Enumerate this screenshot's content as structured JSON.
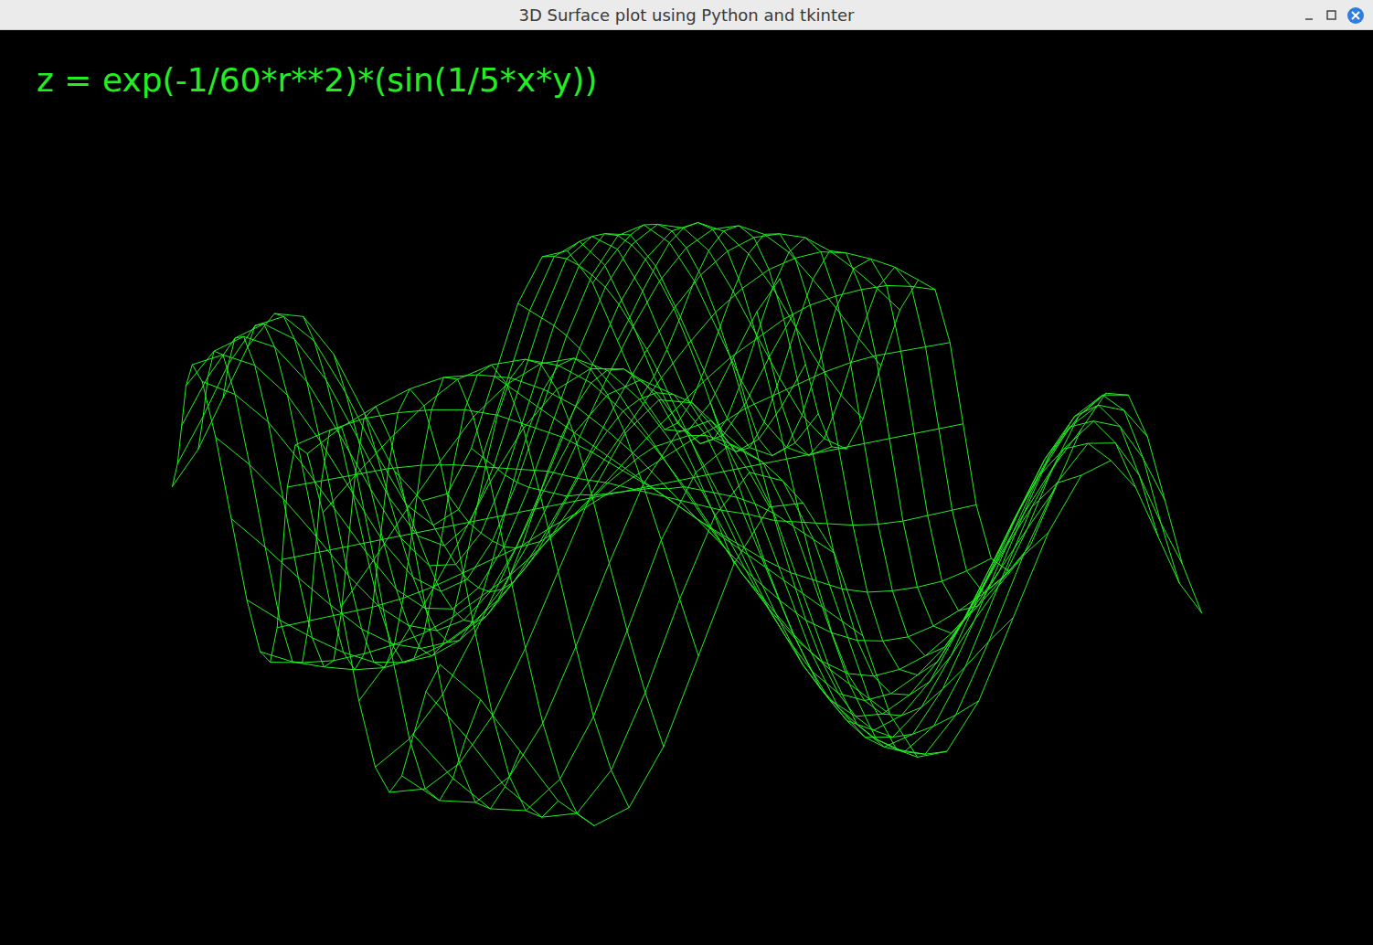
{
  "window": {
    "title": "3D Surface plot using Python and tkinter"
  },
  "chart_data": {
    "type": "surface",
    "title": "z = exp(-1/60*r**2)*(sin(1/5*x*y))",
    "color": "#22ee22",
    "tick_labels": false,
    "x": [
      -6,
      -5.5,
      -5,
      -4.5,
      -4,
      -3.5,
      -3,
      -2.5,
      -2,
      -1.5,
      -1,
      -0.5,
      0,
      0.5,
      1,
      1.5,
      2,
      2.5,
      3,
      3.5,
      4,
      4.5,
      5,
      5.5,
      6
    ],
    "y": [
      -6,
      -5.5,
      -5,
      -4.5,
      -4,
      -3.5,
      -3,
      -2.5,
      -2,
      -1.5,
      -1,
      -0.5,
      0,
      0.5,
      1,
      1.5,
      2,
      2.5,
      3,
      3.5,
      4,
      4.5,
      5,
      5.5,
      6
    ],
    "z": [
      [
        0.24,
        0.1,
        -0.1,
        -0.3,
        -0.42,
        -0.39,
        -0.21,
        0.07,
        0.35,
        0.51,
        0.5,
        0.31,
        0,
        -0.31,
        -0.5,
        -0.51,
        -0.35,
        -0.07,
        0.21,
        0.39,
        0.42,
        0.3,
        0.1,
        -0.1,
        -0.24
      ],
      [
        0.1,
        -0.08,
        -0.28,
        -0.42,
        -0.44,
        -0.32,
        -0.08,
        0.21,
        0.46,
        0.58,
        0.53,
        0.31,
        0,
        -0.31,
        -0.53,
        -0.58,
        -0.46,
        -0.21,
        0.08,
        0.32,
        0.44,
        0.42,
        0.28,
        0.08,
        -0.1
      ],
      [
        -0.1,
        -0.28,
        -0.42,
        -0.46,
        -0.38,
        -0.19,
        0.08,
        0.36,
        0.56,
        0.63,
        0.55,
        0.31,
        0,
        -0.31,
        -0.55,
        -0.63,
        -0.56,
        -0.36,
        -0.08,
        0.19,
        0.38,
        0.46,
        0.42,
        0.28,
        0.1
      ],
      [
        -0.3,
        -0.42,
        -0.46,
        -0.4,
        -0.24,
        0,
        0.26,
        0.5,
        0.65,
        0.67,
        0.55,
        0.31,
        0,
        -0.31,
        -0.55,
        -0.67,
        -0.65,
        -0.5,
        -0.26,
        0,
        0.24,
        0.4,
        0.46,
        0.42,
        0.3
      ],
      [
        -0.42,
        -0.44,
        -0.38,
        -0.24,
        -0.03,
        0.21,
        0.45,
        0.63,
        0.72,
        0.69,
        0.54,
        0.3,
        0,
        -0.3,
        -0.54,
        -0.69,
        -0.72,
        -0.63,
        -0.45,
        -0.21,
        0.03,
        0.24,
        0.38,
        0.44,
        0.42
      ],
      [
        -0.39,
        -0.32,
        -0.19,
        0,
        0.21,
        0.42,
        0.61,
        0.72,
        0.75,
        0.68,
        0.52,
        0.28,
        0,
        -0.28,
        -0.52,
        -0.68,
        -0.75,
        -0.72,
        -0.61,
        -0.42,
        -0.21,
        0,
        0.19,
        0.32,
        0.39
      ],
      [
        -0.21,
        -0.08,
        0.08,
        0.26,
        0.45,
        0.61,
        0.72,
        0.77,
        0.75,
        0.65,
        0.48,
        0.25,
        0,
        -0.25,
        -0.48,
        -0.65,
        -0.75,
        -0.77,
        -0.72,
        -0.61,
        -0.45,
        -0.26,
        -0.08,
        0.08,
        0.21
      ],
      [
        0.07,
        0.21,
        0.36,
        0.5,
        0.63,
        0.72,
        0.77,
        0.77,
        0.71,
        0.59,
        0.42,
        0.22,
        0,
        -0.22,
        -0.42,
        -0.59,
        -0.71,
        -0.77,
        -0.77,
        -0.72,
        -0.63,
        -0.5,
        -0.36,
        -0.21,
        -0.07
      ],
      [
        0.35,
        0.46,
        0.56,
        0.65,
        0.72,
        0.75,
        0.75,
        0.71,
        0.63,
        0.51,
        0.36,
        0.19,
        0,
        -0.19,
        -0.36,
        -0.51,
        -0.63,
        -0.71,
        -0.75,
        -0.75,
        -0.72,
        -0.65,
        -0.56,
        -0.46,
        -0.35
      ],
      [
        0.51,
        0.58,
        0.63,
        0.67,
        0.69,
        0.68,
        0.65,
        0.59,
        0.51,
        0.4,
        0.28,
        0.14,
        0,
        -0.14,
        -0.28,
        -0.4,
        -0.51,
        -0.59,
        -0.65,
        -0.68,
        -0.69,
        -0.67,
        -0.63,
        -0.58,
        -0.51
      ],
      [
        0.5,
        0.53,
        0.55,
        0.55,
        0.54,
        0.52,
        0.48,
        0.42,
        0.36,
        0.28,
        0.19,
        0.1,
        0,
        -0.1,
        -0.19,
        -0.28,
        -0.36,
        -0.42,
        -0.48,
        -0.52,
        -0.54,
        -0.55,
        -0.55,
        -0.53,
        -0.5
      ],
      [
        0.31,
        0.31,
        0.31,
        0.31,
        0.3,
        0.28,
        0.25,
        0.22,
        0.19,
        0.14,
        0.1,
        0.05,
        0,
        -0.05,
        -0.1,
        -0.14,
        -0.19,
        -0.22,
        -0.25,
        -0.28,
        -0.3,
        -0.31,
        -0.31,
        -0.31,
        -0.31
      ],
      [
        0,
        0,
        0,
        0,
        0,
        0,
        0,
        0,
        0,
        0,
        0,
        0,
        0,
        0,
        0,
        0,
        0,
        0,
        0,
        0,
        0,
        0,
        0,
        0,
        0
      ],
      [
        -0.31,
        -0.31,
        -0.31,
        -0.31,
        -0.3,
        -0.28,
        -0.25,
        -0.22,
        -0.19,
        -0.14,
        -0.1,
        -0.05,
        0,
        0.05,
        0.1,
        0.14,
        0.19,
        0.22,
        0.25,
        0.28,
        0.3,
        0.31,
        0.31,
        0.31,
        0.31
      ],
      [
        -0.5,
        -0.53,
        -0.55,
        -0.55,
        -0.54,
        -0.52,
        -0.48,
        -0.42,
        -0.36,
        -0.28,
        -0.19,
        -0.1,
        0,
        0.1,
        0.19,
        0.28,
        0.36,
        0.42,
        0.48,
        0.52,
        0.54,
        0.55,
        0.55,
        0.53,
        0.5
      ],
      [
        -0.51,
        -0.58,
        -0.63,
        -0.67,
        -0.69,
        -0.68,
        -0.65,
        -0.59,
        -0.51,
        -0.4,
        -0.28,
        -0.14,
        0,
        0.14,
        0.28,
        0.4,
        0.51,
        0.59,
        0.65,
        0.68,
        0.69,
        0.67,
        0.63,
        0.58,
        0.51
      ],
      [
        -0.35,
        -0.46,
        -0.56,
        -0.65,
        -0.72,
        -0.75,
        -0.75,
        -0.71,
        -0.63,
        -0.51,
        -0.36,
        -0.19,
        0,
        0.19,
        0.36,
        0.51,
        0.63,
        0.71,
        0.75,
        0.75,
        0.72,
        0.65,
        0.56,
        0.46,
        0.35
      ],
      [
        -0.07,
        -0.21,
        -0.36,
        -0.5,
        -0.63,
        -0.72,
        -0.77,
        -0.77,
        -0.71,
        -0.59,
        -0.42,
        -0.22,
        0,
        0.22,
        0.42,
        0.59,
        0.71,
        0.77,
        0.77,
        0.72,
        0.63,
        0.5,
        0.36,
        0.21,
        0.07
      ],
      [
        0.21,
        0.08,
        -0.08,
        -0.26,
        -0.45,
        -0.61,
        -0.72,
        -0.77,
        -0.75,
        -0.65,
        -0.48,
        -0.25,
        0,
        0.25,
        0.48,
        0.65,
        0.75,
        0.77,
        0.72,
        0.61,
        0.45,
        0.26,
        0.08,
        -0.08,
        -0.21
      ],
      [
        0.39,
        0.32,
        0.19,
        0,
        -0.21,
        -0.42,
        -0.61,
        -0.72,
        -0.75,
        -0.68,
        -0.52,
        -0.28,
        0,
        0.28,
        0.52,
        0.68,
        0.75,
        0.72,
        0.61,
        0.42,
        0.21,
        0,
        -0.19,
        -0.32,
        -0.39
      ],
      [
        0.42,
        0.44,
        0.38,
        0.24,
        0.03,
        -0.21,
        -0.45,
        -0.63,
        -0.72,
        -0.69,
        -0.54,
        -0.3,
        0,
        0.3,
        0.54,
        0.69,
        0.72,
        0.63,
        0.45,
        0.21,
        -0.03,
        -0.24,
        -0.38,
        -0.44,
        -0.42
      ],
      [
        0.3,
        0.42,
        0.46,
        0.4,
        0.24,
        0,
        -0.26,
        -0.5,
        -0.65,
        -0.67,
        -0.55,
        -0.31,
        0,
        0.31,
        0.55,
        0.67,
        0.65,
        0.5,
        0.26,
        0,
        -0.24,
        -0.4,
        -0.46,
        -0.42,
        -0.3
      ],
      [
        0.1,
        0.28,
        0.42,
        0.46,
        0.38,
        0.19,
        -0.08,
        -0.36,
        -0.56,
        -0.63,
        -0.55,
        -0.31,
        0,
        0.31,
        0.55,
        0.63,
        0.56,
        0.36,
        0.08,
        -0.19,
        -0.38,
        -0.46,
        -0.42,
        -0.28,
        -0.1
      ],
      [
        -0.1,
        0.08,
        0.28,
        0.42,
        0.44,
        0.32,
        0.08,
        -0.21,
        -0.46,
        -0.58,
        -0.53,
        -0.31,
        0,
        0.31,
        0.53,
        0.58,
        0.46,
        0.21,
        -0.08,
        -0.32,
        -0.44,
        -0.42,
        -0.28,
        -0.08,
        0.1
      ],
      [
        -0.24,
        -0.1,
        0.1,
        0.3,
        0.42,
        0.39,
        0.21,
        -0.07,
        -0.35,
        -0.51,
        -0.5,
        -0.31,
        0,
        0.31,
        0.5,
        0.51,
        0.35,
        0.07,
        -0.21,
        -0.39,
        -0.42,
        -0.3,
        -0.1,
        0.1,
        0.24
      ]
    ]
  }
}
